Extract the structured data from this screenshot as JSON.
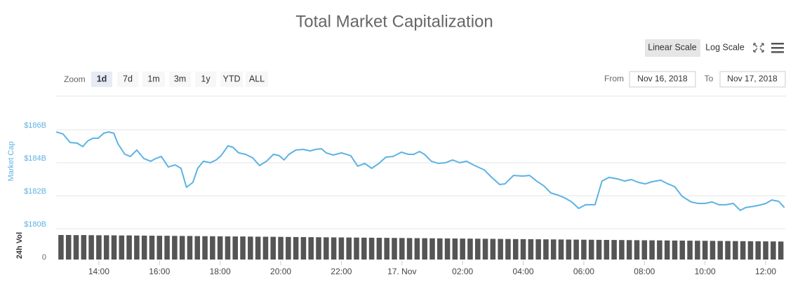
{
  "controls": {
    "scale_buttons": [
      "Linear Scale",
      "Log Scale"
    ],
    "zoom_label": "Zoom",
    "zoom_buttons": [
      "1d",
      "7d",
      "1m",
      "3m",
      "1y",
      "YTD",
      "ALL"
    ],
    "from_label": "From",
    "from_value": "Nov 16, 2018",
    "to_label": "To",
    "to_value": "Nov 17, 2018"
  },
  "chart_data": [
    {
      "type": "line",
      "title": "Total Market Capitalization",
      "y_label": "Market Cap",
      "color": "#5cb3e4",
      "grid": true,
      "xlim": [
        12.59,
        36.67
      ],
      "ylim": [
        180,
        188
      ],
      "yticks": [
        {
          "value": 180,
          "label": "$180B"
        },
        {
          "value": 182,
          "label": "$182B"
        },
        {
          "value": 184,
          "label": "$184B"
        },
        {
          "value": 186,
          "label": "$186B"
        }
      ],
      "x": [
        12.59,
        12.82,
        13.05,
        13.28,
        13.47,
        13.63,
        13.81,
        13.98,
        14.16,
        14.32,
        14.49,
        14.63,
        14.86,
        15.04,
        15.25,
        15.48,
        15.71,
        15.88,
        16.06,
        16.29,
        16.52,
        16.71,
        16.89,
        17.1,
        17.26,
        17.45,
        17.68,
        17.87,
        18.03,
        18.26,
        18.42,
        18.61,
        18.84,
        19.07,
        19.3,
        19.53,
        19.76,
        19.95,
        20.11,
        20.27,
        20.5,
        20.74,
        20.97,
        21.15,
        21.34,
        21.5,
        21.73,
        22.01,
        22.31,
        22.54,
        22.77,
        23.0,
        23.24,
        23.47,
        23.7,
        23.98,
        24.21,
        24.39,
        24.58,
        24.74,
        24.97,
        25.2,
        25.44,
        25.67,
        25.9,
        26.13,
        26.36,
        26.71,
        26.94,
        27.22,
        27.4,
        27.68,
        27.98,
        28.21,
        28.44,
        28.68,
        28.91,
        29.14,
        29.37,
        29.6,
        29.83,
        30.06,
        30.37,
        30.6,
        30.83,
        31.11,
        31.34,
        31.57,
        31.8,
        32.03,
        32.26,
        32.54,
        32.77,
        33.0,
        33.24,
        33.54,
        33.77,
        34.0,
        34.23,
        34.46,
        34.69,
        34.93,
        35.16,
        35.34,
        35.62,
        35.85,
        36.01,
        36.2,
        36.43,
        36.62
      ],
      "values": [
        185.87,
        185.74,
        185.23,
        185.19,
        184.98,
        185.32,
        185.49,
        185.49,
        185.79,
        185.87,
        185.79,
        185.15,
        184.51,
        184.38,
        184.77,
        184.26,
        184.09,
        184.26,
        184.38,
        183.74,
        183.87,
        183.66,
        182.51,
        182.81,
        183.66,
        184.09,
        184.0,
        184.17,
        184.43,
        185.02,
        184.94,
        184.6,
        184.51,
        184.3,
        183.83,
        184.09,
        184.51,
        184.43,
        184.17,
        184.51,
        184.77,
        184.81,
        184.72,
        184.81,
        184.85,
        184.6,
        184.47,
        184.6,
        184.43,
        183.79,
        183.96,
        183.66,
        183.96,
        184.34,
        184.38,
        184.64,
        184.51,
        184.51,
        184.68,
        184.51,
        184.09,
        183.96,
        184.0,
        184.17,
        184.0,
        184.09,
        183.87,
        183.57,
        183.15,
        182.68,
        182.72,
        183.23,
        183.19,
        183.23,
        182.89,
        182.6,
        182.17,
        182.04,
        181.87,
        181.62,
        181.23,
        181.45,
        181.45,
        182.89,
        183.11,
        183.02,
        182.89,
        182.98,
        182.81,
        182.72,
        182.85,
        182.94,
        182.72,
        182.55,
        181.96,
        181.62,
        181.53,
        181.53,
        181.62,
        181.45,
        181.45,
        181.53,
        181.11,
        181.28,
        181.36,
        181.45,
        181.53,
        181.74,
        181.66,
        181.28
      ]
    },
    {
      "type": "bar",
      "y_label": "24h Vol",
      "color": "#555555",
      "xlim": [
        12.59,
        36.67
      ],
      "ylim": [
        0,
        40
      ],
      "yticks": [
        0
      ],
      "xticks": [
        {
          "value": 14,
          "label": "14:00"
        },
        {
          "value": 16,
          "label": "16:00"
        },
        {
          "value": 18,
          "label": "18:00"
        },
        {
          "value": 20,
          "label": "20:00"
        },
        {
          "value": 22,
          "label": "22:00"
        },
        {
          "value": 24,
          "label": "17. Nov"
        },
        {
          "value": 26,
          "label": "02:00"
        },
        {
          "value": 28,
          "label": "04:00"
        },
        {
          "value": 30,
          "label": "06:00"
        },
        {
          "value": 32,
          "label": "08:00"
        },
        {
          "value": 34,
          "label": "10:00"
        },
        {
          "value": 36,
          "label": "12:00"
        }
      ],
      "x": [
        12.75,
        13,
        13.25,
        13.5,
        13.75,
        14,
        14.25,
        14.5,
        14.75,
        15,
        15.25,
        15.5,
        15.75,
        16,
        16.25,
        16.5,
        16.75,
        17,
        17.25,
        17.5,
        17.75,
        18,
        18.25,
        18.5,
        18.75,
        19,
        19.25,
        19.5,
        19.75,
        20,
        20.25,
        20.5,
        20.75,
        21,
        21.25,
        21.5,
        21.75,
        22,
        22.25,
        22.5,
        22.75,
        23,
        23.25,
        23.5,
        23.75,
        24,
        24.25,
        24.5,
        24.75,
        25,
        25.25,
        25.5,
        25.75,
        26,
        26.25,
        26.5,
        26.75,
        27,
        27.25,
        27.5,
        27.75,
        28,
        28.25,
        28.5,
        28.75,
        29,
        29.25,
        29.5,
        29.75,
        30,
        30.25,
        30.5,
        30.75,
        31,
        31.25,
        31.5,
        31.75,
        32,
        32.25,
        32.5,
        32.75,
        33,
        33.25,
        33.5,
        33.75,
        34,
        34.25,
        34.5,
        34.75,
        35,
        35.25,
        35.5,
        35.75,
        36,
        36.25,
        36.5
      ],
      "values": [
        35,
        35,
        34.8,
        34.9,
        34.7,
        34.6,
        34.6,
        34.5,
        34.3,
        34.4,
        34.2,
        34.1,
        34.0,
        33.9,
        33.9,
        33.7,
        33.6,
        33.6,
        33.4,
        33.3,
        33.2,
        33.1,
        33.0,
        32.9,
        32.9,
        32.7,
        32.6,
        32.5,
        32.4,
        32.3,
        32.2,
        32.1,
        32.0,
        31.9,
        31.8,
        31.7,
        31.6,
        31.5,
        31.4,
        31.3,
        31.2,
        31.1,
        31.0,
        30.9,
        30.8,
        30.7,
        30.6,
        30.5,
        30.4,
        30.3,
        30.2,
        30.1,
        30.0,
        29.9,
        29.8,
        29.7,
        29.6,
        29.5,
        29.4,
        29.3,
        29.2,
        29.1,
        29.0,
        28.9,
        28.8,
        28.7,
        28.6,
        28.5,
        28.4,
        28.3,
        28.2,
        28.1,
        28.0,
        27.9,
        27.8,
        27.7,
        27.6,
        27.5,
        27.4,
        27.3,
        27.2,
        27.1,
        27.0,
        26.9,
        26.8,
        26.7,
        26.6,
        26.5,
        26.4,
        26.3,
        26.2,
        26.1,
        26.0,
        25.9,
        25.8,
        25.7
      ]
    }
  ]
}
